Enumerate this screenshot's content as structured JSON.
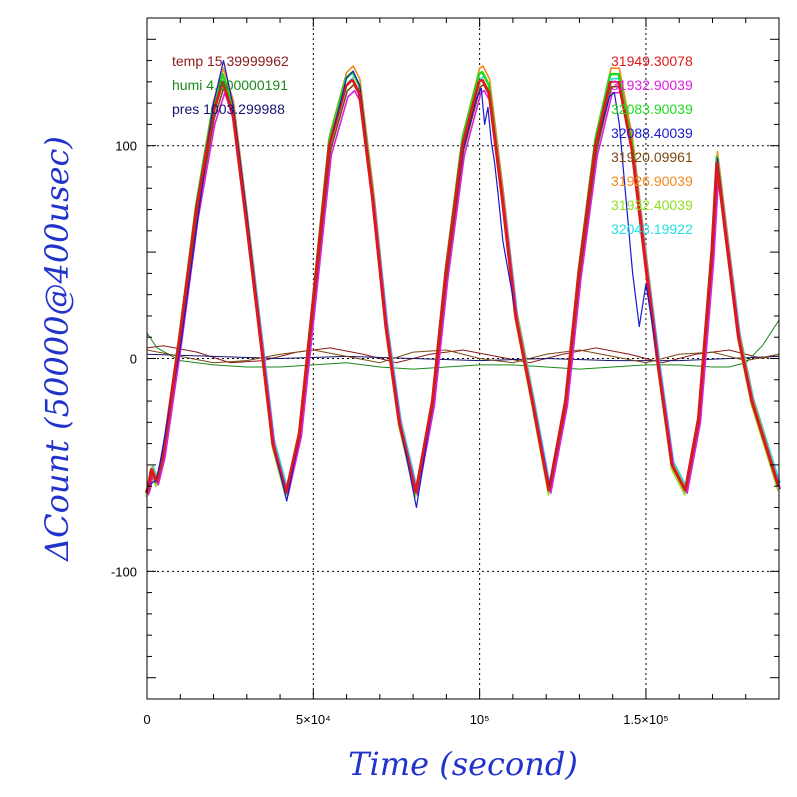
{
  "chart_data": {
    "type": "line",
    "title": "",
    "xlabel": "Time (second)",
    "ylabel": "ΔCount (50000@400usec)",
    "xlim": [
      0,
      190000
    ],
    "ylim": [
      -160,
      160
    ],
    "grid": true,
    "x_ticks": [
      {
        "value": 0,
        "label": "0"
      },
      {
        "value": 50000,
        "label": "5×10⁴"
      },
      {
        "value": 100000,
        "label": "10⁵"
      },
      {
        "value": 150000,
        "label": "1.5×10⁵"
      }
    ],
    "y_ticks": [
      {
        "value": -100,
        "label": "-100"
      },
      {
        "value": 0,
        "label": "0"
      },
      {
        "value": 100,
        "label": "100"
      }
    ],
    "legend_left": [
      {
        "label": "temp 15.39999962",
        "color": "#8b1a1a"
      },
      {
        "label": "humi 4.800000191",
        "color": "#1a8a1a"
      },
      {
        "label": "pres 1003.299988",
        "color": "#14146e"
      }
    ],
    "legend_right": [
      {
        "label": "31949.30078",
        "color": "#e01818"
      },
      {
        "label": "31932.90039",
        "color": "#e020e0"
      },
      {
        "label": "32083.90039",
        "color": "#20d820"
      },
      {
        "label": "32088.40039",
        "color": "#1818d0"
      },
      {
        "label": "31920.09961",
        "color": "#7a4a10"
      },
      {
        "label": "31926.90039",
        "color": "#f08a18"
      },
      {
        "label": "31932.40039",
        "color": "#90e020"
      },
      {
        "label": "32043.19922",
        "color": "#20e0e0"
      }
    ],
    "main_wave": {
      "x": [
        0,
        600,
        1500,
        3000,
        5000,
        10000,
        15000,
        20000,
        23000,
        26000,
        30000,
        35000,
        38000,
        42000,
        46000,
        50000,
        55000,
        60000,
        62000,
        64000,
        68000,
        72000,
        76000,
        81000,
        86000,
        90000,
        95000,
        100000,
        101000,
        103000,
        107000,
        111000,
        116000,
        121000,
        126000,
        130000,
        135000,
        139500,
        142000,
        146000,
        150000,
        154000,
        158000,
        162000,
        166000,
        170000,
        171500,
        174000,
        178000,
        182000,
        186000,
        190000
      ],
      "y": [
        -63,
        -60,
        -52,
        -58,
        -45,
        10,
        70,
        115,
        130,
        115,
        65,
        0,
        -40,
        -63,
        -35,
        25,
        100,
        128,
        131,
        125,
        75,
        15,
        -30,
        -63,
        -20,
        40,
        100,
        130,
        131,
        125,
        75,
        20,
        -20,
        -62,
        -20,
        40,
        100,
        130,
        130,
        98,
        45,
        -5,
        -50,
        -62,
        -28,
        50,
        92,
        60,
        10,
        -20,
        -40,
        -60
      ]
    },
    "blue_noisy_wave": {
      "x": [
        0,
        3000,
        10000,
        20000,
        23000,
        26000,
        30000,
        35000,
        38000,
        42000,
        46000,
        50000,
        55000,
        60000,
        62000,
        64000,
        68000,
        72000,
        76000,
        81000,
        86000,
        90000,
        95000,
        99000,
        100500,
        101500,
        102500,
        103500,
        104500,
        105500,
        107000,
        111000,
        116000,
        121000,
        126000,
        130000,
        135000,
        139000,
        140500,
        142000,
        144000,
        146000,
        148000,
        150000,
        154000,
        158000,
        162000,
        166000,
        170000,
        171500,
        174000,
        178000,
        182000,
        186000,
        190000
      ],
      "y": [
        -60,
        -57,
        5,
        120,
        140,
        118,
        68,
        0,
        -40,
        -67,
        -35,
        25,
        100,
        132,
        135,
        128,
        75,
        15,
        -30,
        -70,
        -20,
        40,
        98,
        122,
        127,
        110,
        118,
        102,
        92,
        78,
        55,
        20,
        -20,
        -61,
        -20,
        40,
        100,
        123,
        125,
        110,
        75,
        40,
        15,
        35,
        -5,
        -50,
        -62,
        -28,
        50,
        94,
        60,
        10,
        -20,
        -40,
        -60
      ]
    },
    "small_waves": [
      {
        "name": "temp",
        "color": "#8b1a1a",
        "x": [
          0,
          5000,
          15000,
          25000,
          35000,
          45000,
          55000,
          65000,
          75000,
          85000,
          95000,
          105000,
          115000,
          125000,
          135000,
          145000,
          155000,
          165000,
          175000,
          185000,
          190000
        ],
        "y": [
          5,
          6,
          3,
          -2,
          -1,
          3,
          5,
          2,
          -2,
          2,
          4,
          1,
          -2,
          2,
          5,
          2,
          -2,
          2,
          4,
          0,
          2
        ]
      },
      {
        "name": "humi",
        "color": "#1a8a1a",
        "x": [
          0,
          3000,
          10000,
          20000,
          30000,
          40000,
          50000,
          60000,
          70000,
          80000,
          90000,
          100000,
          110000,
          120000,
          130000,
          140000,
          150000,
          160000,
          170000,
          175000,
          180000,
          185000,
          190000
        ],
        "y": [
          12,
          5,
          -1,
          -3,
          -4,
          -4,
          -3,
          -2,
          -4,
          -5,
          -4,
          -3,
          -3,
          -4,
          -5,
          -4,
          -3,
          -3,
          -4,
          -4,
          -2,
          6,
          18
        ]
      },
      {
        "name": "pres",
        "color": "#14146e",
        "x": [
          0,
          20000,
          40000,
          60000,
          80000,
          100000,
          120000,
          140000,
          160000,
          175000,
          190000
        ],
        "y": [
          2,
          1,
          0,
          1,
          0,
          -1,
          0,
          -1,
          -1,
          0,
          1
        ]
      },
      {
        "name": "",
        "color": "#7a4a10",
        "x": [
          0,
          10000,
          20000,
          30000,
          40000,
          50000,
          60000,
          70000,
          80000,
          90000,
          100000,
          110000,
          120000,
          130000,
          140000,
          150000,
          160000,
          170000,
          180000,
          190000
        ],
        "y": [
          4,
          1,
          -2,
          -1,
          2,
          4,
          1,
          -2,
          3,
          4,
          0,
          -2,
          2,
          4,
          1,
          -2,
          2,
          3,
          -1,
          2
        ]
      }
    ]
  }
}
